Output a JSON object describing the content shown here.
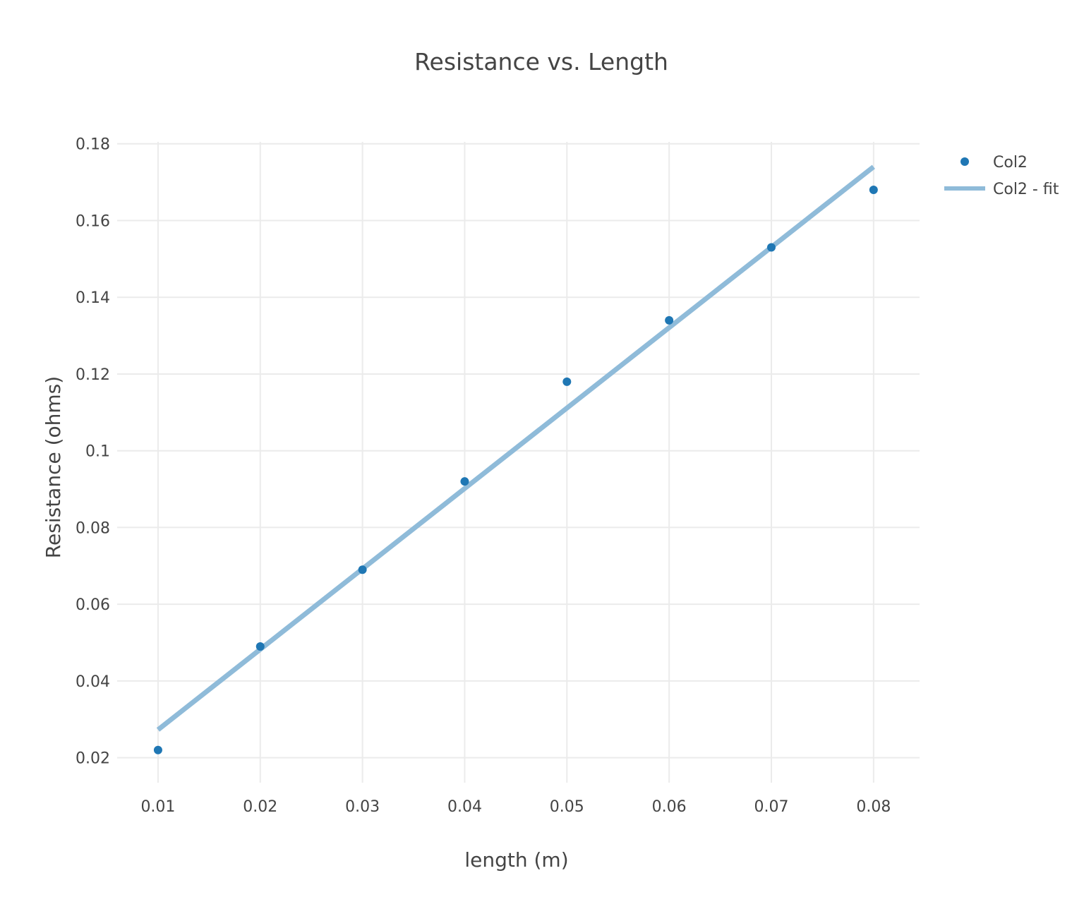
{
  "colors": {
    "marker": "#1f77b4",
    "fit_line": "#8fbbd9",
    "grid": "#ebebeb",
    "text": "#444444",
    "background": "#ffffff"
  },
  "chart_data": {
    "type": "scatter",
    "title": "Resistance vs. Length",
    "xlabel": "length (m)",
    "ylabel": "Resistance (ohms)",
    "xlim": [
      0.006,
      0.0845
    ],
    "ylim": [
      0.0135,
      0.1805
    ],
    "x_ticks": [
      0.01,
      0.02,
      0.03,
      0.04,
      0.05,
      0.06,
      0.07,
      0.08
    ],
    "x_tick_labels": [
      "0.01",
      "0.02",
      "0.03",
      "0.04",
      "0.05",
      "0.06",
      "0.07",
      "0.08"
    ],
    "y_ticks": [
      0.02,
      0.04,
      0.06,
      0.08,
      0.1,
      0.12,
      0.14,
      0.16,
      0.18
    ],
    "y_tick_labels": [
      "0.02",
      "0.04",
      "0.06",
      "0.08",
      "0.1",
      "0.12",
      "0.14",
      "0.16",
      "0.18"
    ],
    "grid": true,
    "legend_position": "top-right",
    "series": [
      {
        "name": "Col2",
        "mode": "markers",
        "x": [
          0.01,
          0.02,
          0.03,
          0.04,
          0.05,
          0.06,
          0.07,
          0.08
        ],
        "y": [
          0.022,
          0.049,
          0.069,
          0.092,
          0.118,
          0.134,
          0.153,
          0.168
        ]
      },
      {
        "name": "Col2 - fit",
        "mode": "lines",
        "x": [
          0.01,
          0.08
        ],
        "y": [
          0.0273,
          0.174
        ]
      }
    ]
  }
}
